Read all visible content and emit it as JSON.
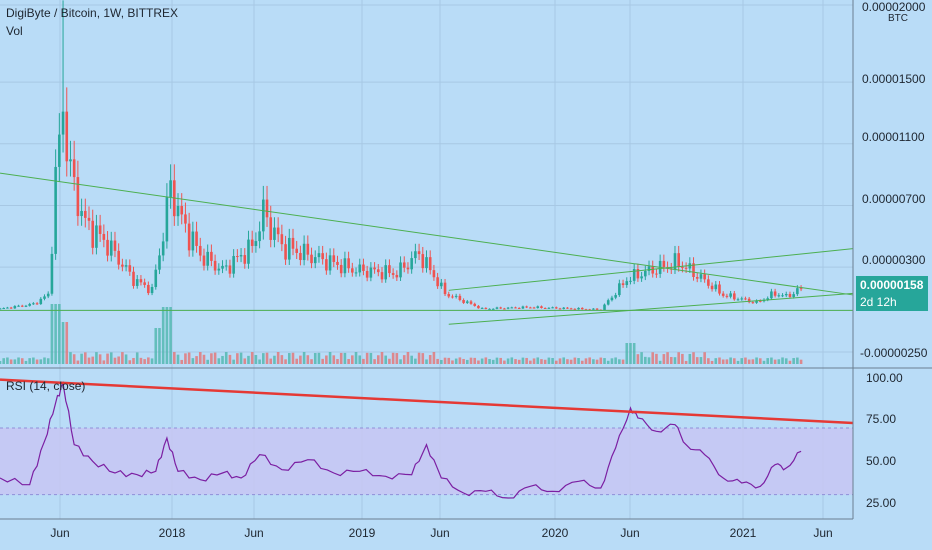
{
  "header": {
    "title": "DigiByte / Bitcoin, 1W, BITTREX",
    "vol_label": "Vol",
    "rsi_label": "RSI (14, close)"
  },
  "price_axis": {
    "unit": "BTC",
    "ticks": [
      "0.00002000",
      "0.00001500",
      "0.00001100",
      "0.00000700",
      "0.00000300",
      "-0.00000250"
    ],
    "current_price": "0.00000158",
    "countdown": "2d 12h"
  },
  "rsi_axis": {
    "ticks": [
      "100.00",
      "75.00",
      "50.00",
      "25.00"
    ]
  },
  "time_axis": {
    "ticks": [
      "Jun",
      "2018",
      "Jun",
      "2019",
      "Jun",
      "2020",
      "Jun",
      "2021",
      "Jun"
    ]
  },
  "colors": {
    "background": "#b9dcf7",
    "up": "#26a69a",
    "down": "#ef5350",
    "trendline": "#4caf50",
    "rsi_line": "#7b1fa2",
    "rsi_band": "#c7c5f3",
    "rsi_trendline": "#e53935"
  },
  "chart_data": [
    {
      "type": "candlestick",
      "title": "DigiByte / Bitcoin, 1W, BITTREX",
      "ylabel": "BTC",
      "x_range": [
        "2017-02",
        "2021-07"
      ],
      "ylim": [
        -3.5e-06,
        2.13e-05
      ],
      "current_price": 1.58e-06,
      "anchors": [
        {
          "t": "2017-02-06",
          "close": 3e-07
        },
        {
          "t": "2017-04-10",
          "close": 6e-07
        },
        {
          "t": "2017-05-08",
          "close": 1.2e-06
        },
        {
          "t": "2017-05-22",
          "close": 8.5e-06
        },
        {
          "t": "2017-06-05",
          "close": 1.35e-05,
          "high": 2.03e-05
        },
        {
          "t": "2017-06-19",
          "close": 9e-06
        },
        {
          "t": "2017-07-17",
          "close": 5.8e-06
        },
        {
          "t": "2017-08-28",
          "close": 4.5e-06
        },
        {
          "t": "2017-10-16",
          "close": 2.2e-06
        },
        {
          "t": "2017-11-20",
          "close": 1.5e-06
        },
        {
          "t": "2017-12-11",
          "close": 5.2e-06
        },
        {
          "t": "2017-12-25",
          "close": 8.2e-06
        },
        {
          "t": "2018-01-15",
          "close": 6e-06
        },
        {
          "t": "2018-02-19",
          "close": 3.8e-06
        },
        {
          "t": "2018-04-02",
          "close": 2.8e-06
        },
        {
          "t": "2018-05-28",
          "close": 4.3e-06
        },
        {
          "t": "2018-06-18",
          "close": 6.5e-06
        },
        {
          "t": "2018-07-23",
          "close": 4.4e-06
        },
        {
          "t": "2018-09-17",
          "close": 3.7e-06
        },
        {
          "t": "2018-12-10",
          "close": 2.8e-06
        },
        {
          "t": "2019-02-25",
          "close": 2.6e-06
        },
        {
          "t": "2019-04-08",
          "close": 3.9e-06
        },
        {
          "t": "2019-05-27",
          "close": 1.3e-06
        },
        {
          "t": "2019-08-05",
          "close": 3e-07
        },
        {
          "t": "2019-11-04",
          "close": 4e-07
        },
        {
          "t": "2020-03-16",
          "close": 2.5e-07
        },
        {
          "t": "2020-05-04",
          "close": 2.2e-06
        },
        {
          "t": "2020-06-01",
          "close": 2.6e-06
        },
        {
          "t": "2020-08-10",
          "close": 3.3e-06
        },
        {
          "t": "2020-09-21",
          "close": 2.3e-06
        },
        {
          "t": "2020-11-02",
          "close": 1.2e-06
        },
        {
          "t": "2021-01-04",
          "close": 7e-07
        },
        {
          "t": "2021-02-08",
          "close": 1.3e-06
        },
        {
          "t": "2021-03-01",
          "close": 1.1e-06
        },
        {
          "t": "2021-03-29",
          "close": 1.58e-06
        }
      ],
      "trendlines": [
        {
          "from": {
            "t": "2017-02-06",
            "y": 9.1e-06
          },
          "to": {
            "t": "2021-07-05",
            "y": 1.2e-06
          }
        },
        {
          "from": {
            "t": "2017-02-06",
            "y": 2e-07
          },
          "to": {
            "t": "2021-07-05",
            "y": 2e-07
          }
        },
        {
          "from": {
            "t": "2019-06-03",
            "y": 1.5e-06
          },
          "to": {
            "t": "2021-07-05",
            "y": 4.2e-06
          }
        },
        {
          "from": {
            "t": "2019-06-03",
            "y": -7e-07
          },
          "to": {
            "t": "2021-07-05",
            "y": 1.3e-06
          }
        }
      ]
    },
    {
      "type": "line",
      "title": "RSI (14, close)",
      "ylim": [
        20,
        100
      ],
      "band": [
        30,
        70
      ],
      "trendline": {
        "from": {
          "t": "2017-02-06",
          "y": 99
        },
        "to": {
          "t": "2021-07-05",
          "y": 73
        }
      },
      "x": [
        "2017-02-06",
        "2017-04-03",
        "2017-05-01",
        "2017-05-22",
        "2017-06-05",
        "2017-06-26",
        "2017-07-31",
        "2017-09-11",
        "2017-10-23",
        "2017-11-27",
        "2017-12-18",
        "2018-01-08",
        "2018-02-19",
        "2018-04-02",
        "2018-05-07",
        "2018-06-11",
        "2018-07-23",
        "2018-09-10",
        "2018-10-29",
        "2018-12-17",
        "2019-02-04",
        "2019-03-25",
        "2019-04-22",
        "2019-05-20",
        "2019-07-01",
        "2019-08-12",
        "2019-09-23",
        "2019-11-04",
        "2019-12-16",
        "2020-02-03",
        "2020-03-16",
        "2020-04-13",
        "2020-05-11",
        "2020-05-25",
        "2020-06-29",
        "2020-08-03",
        "2020-08-24",
        "2020-09-28",
        "2020-11-02",
        "2020-12-07",
        "2021-01-11",
        "2021-02-08",
        "2021-03-01",
        "2021-03-29"
      ],
      "values": [
        40,
        36,
        62,
        85,
        97,
        60,
        50,
        43,
        42,
        44,
        64,
        44,
        39,
        43,
        40,
        54,
        45,
        51,
        43,
        44,
        41,
        42,
        60,
        40,
        31,
        32,
        28,
        35,
        32,
        38,
        34,
        58,
        82,
        76,
        68,
        72,
        60,
        54,
        40,
        37,
        35,
        48,
        46,
        56
      ]
    },
    {
      "type": "bar",
      "title": "Vol",
      "note": "weekly volume histogram, relative heights",
      "x": [
        "2017-05-22",
        "2017-06-05",
        "2017-12-04",
        "2017-12-18",
        "2020-05-11"
      ],
      "values": [
        1.0,
        0.7,
        0.6,
        0.95,
        0.35
      ]
    }
  ]
}
